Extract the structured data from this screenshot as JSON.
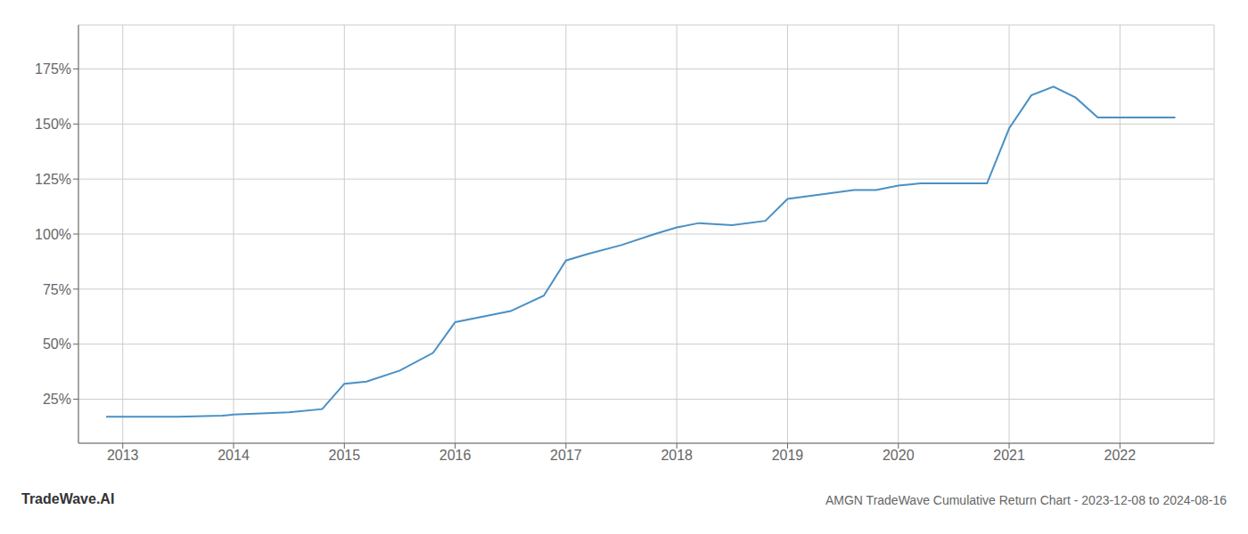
{
  "chart_data": {
    "type": "line",
    "title": "AMGN TradeWave Cumulative Return Chart - 2023-12-08 to 2024-08-16",
    "annotations": [
      "TradeWave.AI"
    ],
    "x": [
      2012.85,
      2013.0,
      2013.5,
      2013.9,
      2014.0,
      2014.5,
      2014.8,
      2015.0,
      2015.2,
      2015.5,
      2015.8,
      2016.0,
      2016.3,
      2016.5,
      2016.8,
      2017.0,
      2017.2,
      2017.5,
      2017.8,
      2018.0,
      2018.2,
      2018.5,
      2018.8,
      2019.0,
      2019.3,
      2019.6,
      2019.8,
      2020.0,
      2020.2,
      2020.5,
      2020.8,
      2021.0,
      2021.2,
      2021.4,
      2021.6,
      2021.8,
      2022.0,
      2022.5
    ],
    "values": [
      17,
      17,
      17,
      17.5,
      18,
      19,
      20.5,
      32,
      33,
      38,
      46,
      60,
      63,
      65,
      72,
      88,
      91,
      95,
      100,
      103,
      105,
      104,
      106,
      116,
      118,
      120,
      120,
      122,
      123,
      123,
      123,
      148,
      163,
      167,
      162,
      153,
      153,
      153
    ],
    "color": "#4a90c4",
    "xlim": [
      2012.6,
      2022.85
    ],
    "ylim": [
      5,
      195
    ],
    "xticks": [
      2013,
      2014,
      2015,
      2016,
      2017,
      2018,
      2019,
      2020,
      2021,
      2022
    ],
    "yticks": [
      {
        "value": 25,
        "label": "25%"
      },
      {
        "value": 50,
        "label": "50%"
      },
      {
        "value": 75,
        "label": "75%"
      },
      {
        "value": 100,
        "label": "100%"
      },
      {
        "value": 125,
        "label": "125%"
      },
      {
        "value": 150,
        "label": "150%"
      },
      {
        "value": 175,
        "label": "175%"
      }
    ],
    "grid": true
  }
}
